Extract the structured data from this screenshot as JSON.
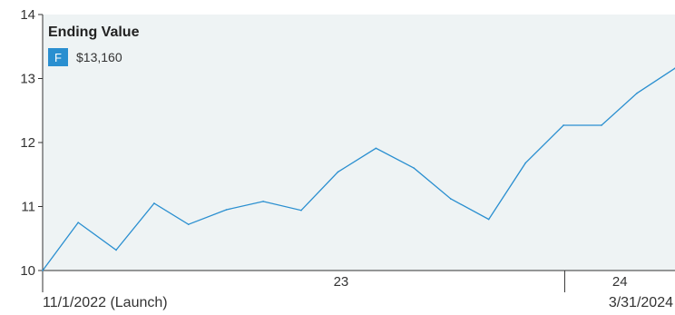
{
  "chart_data": {
    "type": "line",
    "legend": {
      "title": "Ending Value",
      "badge": "F",
      "value": "$13,160",
      "placement": "top-left"
    },
    "ylim": [
      10,
      14
    ],
    "yticks": [
      "10",
      "11",
      "12",
      "13",
      "14"
    ],
    "xlim": [
      "2022-11-01",
      "2024-03-31"
    ],
    "x_year_labels": [
      {
        "label": "23",
        "start": "2023-01-01",
        "end": "2024-01-01"
      },
      {
        "label": "24",
        "start": "2024-01-01",
        "end": "2024-03-31"
      }
    ],
    "start_label": "11/1/2022 (Launch)",
    "end_label": "3/31/2024",
    "series": [
      {
        "badge": "F",
        "color": "#2a8fd0",
        "x": [
          "2022-11-01",
          "2022-11-30",
          "2022-12-31",
          "2023-01-31",
          "2023-02-28",
          "2023-03-31",
          "2023-04-30",
          "2023-05-31",
          "2023-06-30",
          "2023-07-31",
          "2023-08-31",
          "2023-09-30",
          "2023-10-31",
          "2023-11-30",
          "2023-12-31",
          "2024-01-31",
          "2024-02-29",
          "2024-03-31"
        ],
        "values": [
          10.0,
          10.75,
          10.32,
          11.05,
          10.72,
          10.95,
          11.08,
          10.94,
          11.54,
          11.91,
          11.6,
          11.12,
          10.8,
          11.68,
          12.27,
          12.27,
          12.77,
          13.16
        ]
      }
    ],
    "colors": {
      "plot_background": "#eef3f4",
      "line": "#2a8fd0",
      "badge": "#2a8fd0",
      "axis": "#333333"
    }
  }
}
